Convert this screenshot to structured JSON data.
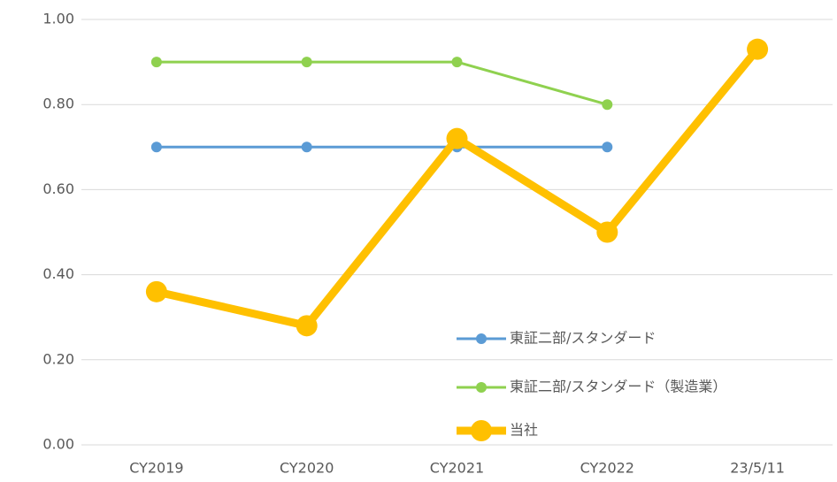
{
  "chart_data": {
    "type": "line",
    "categories": [
      "CY2019",
      "CY2020",
      "CY2021",
      "CY2022",
      "23/5/11"
    ],
    "series": [
      {
        "name": "東証二部/スタンダード",
        "color": "#5b9bd5",
        "values": [
          0.7,
          0.7,
          0.7,
          0.7,
          null
        ]
      },
      {
        "name": "東証二部/スタンダード（製造業）",
        "color": "#8fd14f",
        "values": [
          0.9,
          0.9,
          0.9,
          0.8,
          null
        ]
      },
      {
        "name": "当社",
        "color": "#ffc000",
        "values": [
          0.36,
          0.28,
          0.72,
          0.5,
          0.93
        ]
      }
    ],
    "ylim": [
      0,
      1
    ],
    "yticks": [
      {
        "value": 0,
        "label": "0.00"
      },
      {
        "value": 0.2,
        "label": "0.20"
      },
      {
        "value": 0.4,
        "label": "0.40"
      },
      {
        "value": 0.6,
        "label": "0.60"
      },
      {
        "value": 0.8,
        "label": "0.80"
      },
      {
        "value": 1,
        "label": "1.00"
      }
    ],
    "grid": true,
    "legend": "lower-right"
  }
}
